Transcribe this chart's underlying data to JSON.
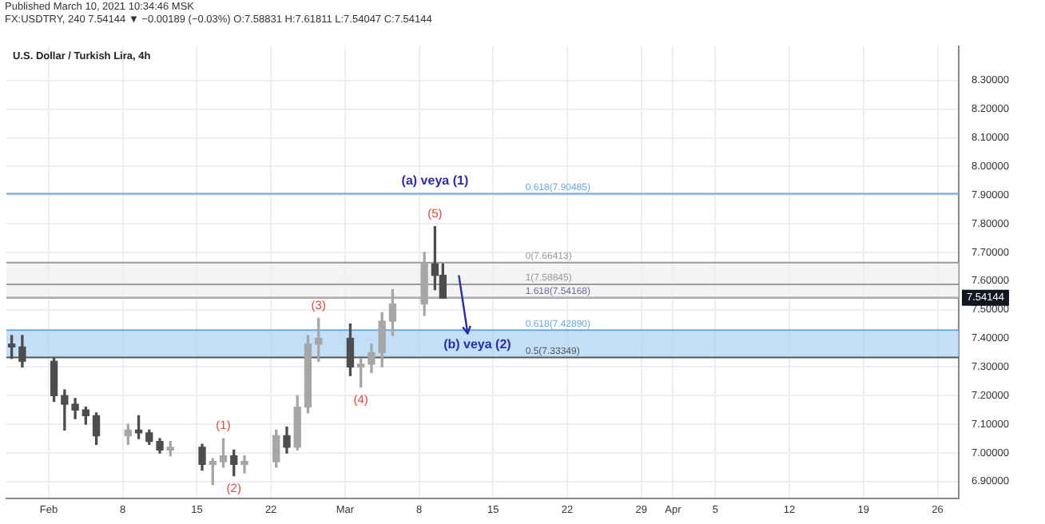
{
  "chart_data": {
    "type": "candlestick",
    "title": "U.S. Dollar / Turkish Lira, 4h",
    "subtitle": "Published March 10, 2021 10:34:46 MSK\nFX:USDTRY, 240 7.54144 ▼ −0.00189 (−0.03%) O:7.58831 H:7.61811 L:7.54047 C:7.54144",
    "x": [
      "2021-01-28T12:00",
      "2021-01-29T12:00",
      "2021-02-01T12:00",
      "2021-02-02T12:00",
      "2021-02-03T12:00",
      "2021-02-04T12:00",
      "2021-02-05T12:00",
      "2021-02-08T12:00",
      "2021-02-09T12:00",
      "2021-02-10T12:00",
      "2021-02-11T12:00",
      "2021-02-12T12:00",
      "2021-02-15T12:00",
      "2021-02-16T12:00",
      "2021-02-17T12:00",
      "2021-02-18T12:00",
      "2021-02-19T12:00",
      "2021-02-22T12:00",
      "2021-02-23T12:00",
      "2021-02-24T12:00",
      "2021-02-25T12:00",
      "2021-02-26T12:00",
      "2021-03-01T12:00",
      "2021-03-02T12:00",
      "2021-03-03T12:00",
      "2021-03-04T12:00",
      "2021-03-05T12:00",
      "2021-03-08T12:00",
      "2021-03-09T12:00",
      "2021-03-10T06:00"
    ],
    "ohlc": [
      [
        7.38,
        7.41,
        7.33,
        7.37
      ],
      [
        7.37,
        7.41,
        7.3,
        7.32
      ],
      [
        7.32,
        7.33,
        7.18,
        7.2
      ],
      [
        7.2,
        7.22,
        7.08,
        7.17
      ],
      [
        7.17,
        7.19,
        7.12,
        7.15
      ],
      [
        7.15,
        7.16,
        7.1,
        7.13
      ],
      [
        7.13,
        7.14,
        7.03,
        7.06
      ],
      [
        7.06,
        7.1,
        7.03,
        7.08
      ],
      [
        7.08,
        7.13,
        7.05,
        7.07
      ],
      [
        7.07,
        7.08,
        7.03,
        7.04
      ],
      [
        7.04,
        7.05,
        7.0,
        7.01
      ],
      [
        7.01,
        7.04,
        6.99,
        7.02
      ],
      [
        7.02,
        7.03,
        6.94,
        6.96
      ],
      [
        6.96,
        6.98,
        6.89,
        6.97
      ],
      [
        6.97,
        7.05,
        6.95,
        6.99
      ],
      [
        6.99,
        7.01,
        6.92,
        6.96
      ],
      [
        6.96,
        6.99,
        6.93,
        6.97
      ],
      [
        6.97,
        7.08,
        6.95,
        7.06
      ],
      [
        7.06,
        7.09,
        7.0,
        7.02
      ],
      [
        7.02,
        7.2,
        7.01,
        7.16
      ],
      [
        7.16,
        7.41,
        7.14,
        7.38
      ],
      [
        7.38,
        7.47,
        7.32,
        7.4
      ],
      [
        7.4,
        7.45,
        7.27,
        7.3
      ],
      [
        7.3,
        7.33,
        7.23,
        7.31
      ],
      [
        7.31,
        7.38,
        7.28,
        7.35
      ],
      [
        7.35,
        7.49,
        7.3,
        7.46
      ],
      [
        7.46,
        7.57,
        7.41,
        7.52
      ],
      [
        7.52,
        7.7,
        7.48,
        7.66
      ],
      [
        7.66,
        7.79,
        7.57,
        7.62
      ],
      [
        7.62,
        7.66,
        7.54,
        7.54
      ]
    ],
    "colors": [
      "#4d4d4d",
      "#4d4d4d",
      "#4d4d4d",
      "#4d4d4d",
      "#4d4d4d",
      "#4d4d4d",
      "#4d4d4d",
      "#a6a6a6",
      "#4d4d4d",
      "#4d4d4d",
      "#4d4d4d",
      "#a6a6a6",
      "#4d4d4d",
      "#a6a6a6",
      "#a6a6a6",
      "#4d4d4d",
      "#a6a6a6",
      "#a6a6a6",
      "#4d4d4d",
      "#a6a6a6",
      "#a6a6a6",
      "#a6a6a6",
      "#4d4d4d",
      "#a6a6a6",
      "#a6a6a6",
      "#a6a6a6",
      "#a6a6a6",
      "#a6a6a6",
      "#4d4d4d",
      "#4d4d4d"
    ],
    "xlim": [
      "2021-01-28T00:00",
      "2021-04-28T00:00"
    ],
    "xticks": [
      {
        "value": "2021-02-01",
        "label": "Feb"
      },
      {
        "value": "2021-02-08",
        "label": "8"
      },
      {
        "value": "2021-02-15",
        "label": "15"
      },
      {
        "value": "2021-02-22",
        "label": "22"
      },
      {
        "value": "2021-03-01",
        "label": "Mar"
      },
      {
        "value": "2021-03-08",
        "label": "8"
      },
      {
        "value": "2021-03-15",
        "label": "15"
      },
      {
        "value": "2021-03-22",
        "label": "22"
      },
      {
        "value": "2021-03-29",
        "label": "29"
      },
      {
        "value": "2021-04-01",
        "label": "Apr"
      },
      {
        "value": "2021-04-05",
        "label": "5"
      },
      {
        "value": "2021-04-12",
        "label": "12"
      },
      {
        "value": "2021-04-19",
        "label": "19"
      },
      {
        "value": "2021-04-26",
        "label": "26"
      }
    ],
    "ylim": [
      6.84,
      8.42
    ],
    "yticks": [
      {
        "value": 6.9,
        "label": "6.90000"
      },
      {
        "value": 7.0,
        "label": "7.00000"
      },
      {
        "value": 7.1,
        "label": "7.10000"
      },
      {
        "value": 7.2,
        "label": "7.20000"
      },
      {
        "value": 7.3,
        "label": "7.30000"
      },
      {
        "value": 7.4,
        "label": "7.40000"
      },
      {
        "value": 7.5,
        "label": "7.50000"
      },
      {
        "value": 7.6,
        "label": "7.60000"
      },
      {
        "value": 7.7,
        "label": "7.70000"
      },
      {
        "value": 7.8,
        "label": "7.80000"
      },
      {
        "value": 7.9,
        "label": "7.90000"
      },
      {
        "value": 8.0,
        "label": "8.00000"
      },
      {
        "value": 8.1,
        "label": "8.10000"
      },
      {
        "value": 8.2,
        "label": "8.20000"
      },
      {
        "value": 8.3,
        "label": "8.30000"
      }
    ],
    "grid": true,
    "legend": false,
    "bands": [
      {
        "axis": "y",
        "from": 7.33349,
        "to": 7.4289,
        "color": "#a9d3f5"
      },
      {
        "axis": "y",
        "from": 7.54168,
        "to": 7.66413,
        "color": "#f0f0f0"
      }
    ],
    "ref_lines": [
      {
        "axis": "y",
        "value": 7.90485,
        "label": "0.618(7.90485)",
        "color": "#6aa9e0"
      },
      {
        "axis": "y",
        "value": 7.66413,
        "label": "0(7.66413)",
        "color": "#9a9a9a"
      },
      {
        "axis": "y",
        "value": 7.58845,
        "label": "1(7.58845)",
        "color": "#9a9a9a"
      },
      {
        "axis": "y",
        "value": 7.54168,
        "label": "1.618(7.54168)",
        "color": "#6b6b9a"
      },
      {
        "axis": "y",
        "value": 7.4289,
        "label": "0.618(7.42890)",
        "color": "#6aa9e0"
      },
      {
        "axis": "y",
        "value": 7.33349,
        "label": "0.5(7.33349)",
        "color": "#555555"
      },
      {
        "axis": "y",
        "value": 7.54144,
        "label": "7.54144",
        "color": "#b0b0b0"
      }
    ],
    "annotations": [
      {
        "text": "(1)",
        "x": "2021-02-17T12:00",
        "y": 7.05
      },
      {
        "text": "(2)",
        "x": "2021-02-18T12:00",
        "y": 6.92
      },
      {
        "text": "(3)",
        "x": "2021-02-26T12:00",
        "y": 7.47
      },
      {
        "text": "(4)",
        "x": "2021-03-02T12:00",
        "y": 7.23
      },
      {
        "text": "(5)",
        "x": "2021-03-09T12:00",
        "y": 7.79
      },
      {
        "text": "(a) veya (1)",
        "x": "2021-03-09T12:00",
        "y": 7.90485
      },
      {
        "text": "(b) veya (2)",
        "x": "2021-03-13T12:00",
        "y": 7.33349
      }
    ]
  }
}
